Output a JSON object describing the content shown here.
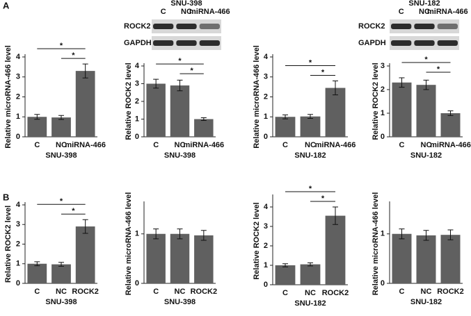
{
  "panel_labels": [
    "A",
    "B"
  ],
  "chart_data": [
    {
      "type": "bar",
      "ylabel": "Relative microRNA-466 level",
      "xlabel": "SNU-398",
      "categories": [
        "C",
        "NC",
        "miRNA-466"
      ],
      "values": [
        1.0,
        0.97,
        3.3
      ],
      "errors": [
        0.12,
        0.1,
        0.35
      ],
      "color": "#606060",
      "ylim": [
        0,
        4
      ],
      "yticks": [
        0,
        1,
        2,
        3,
        4
      ],
      "significance": [
        {
          "label": "*",
          "between": [
            0,
            2
          ]
        },
        {
          "label": "*",
          "between": [
            1,
            2
          ]
        }
      ]
    },
    {
      "type": "bar",
      "ylabel": "Relative ROCK2 level",
      "xlabel": "SNU-398",
      "categories": [
        "C",
        "NC",
        "miRNA-466"
      ],
      "values": [
        3.0,
        2.9,
        1.0
      ],
      "errors": [
        0.25,
        0.3,
        0.08
      ],
      "color": "#606060",
      "ylim": [
        0,
        4
      ],
      "yticks": [
        0,
        1,
        2,
        3,
        4
      ],
      "significance": [
        {
          "label": "*",
          "between": [
            0,
            2
          ]
        },
        {
          "label": "*",
          "between": [
            1,
            2
          ]
        }
      ],
      "blot": {
        "title": "SNU-398",
        "lanes": [
          "C",
          "NC",
          "miRNA-466"
        ],
        "rows": [
          "ROCK2",
          "GAPDH"
        ]
      }
    },
    {
      "type": "bar",
      "ylabel": "Relative microRNA-466 level",
      "xlabel": "SNU-182",
      "categories": [
        "C",
        "NC",
        "miRNA-466"
      ],
      "values": [
        1.0,
        1.02,
        2.45
      ],
      "errors": [
        0.1,
        0.1,
        0.35
      ],
      "color": "#606060",
      "ylim": [
        0,
        4
      ],
      "yticks": [
        0,
        1,
        2,
        3,
        4
      ],
      "significance": [
        {
          "label": "*",
          "between": [
            0,
            2
          ]
        },
        {
          "label": "*",
          "between": [
            1,
            2
          ]
        }
      ]
    },
    {
      "type": "bar",
      "ylabel": "Relative ROCK2 level",
      "xlabel": "SNU-182",
      "categories": [
        "C",
        "NC",
        "miRNA-466"
      ],
      "values": [
        2.3,
        2.2,
        1.0
      ],
      "errors": [
        0.2,
        0.2,
        0.1
      ],
      "color": "#606060",
      "ylim": [
        0,
        3
      ],
      "yticks": [
        0,
        1,
        2,
        3
      ],
      "significance": [
        {
          "label": "*",
          "between": [
            0,
            2
          ]
        },
        {
          "label": "*",
          "between": [
            1,
            2
          ]
        }
      ],
      "blot": {
        "title": "SNU-182",
        "lanes": [
          "C",
          "NC",
          "miRNA-466"
        ],
        "rows": [
          "ROCK2",
          "GAPDH"
        ]
      }
    },
    {
      "type": "bar",
      "ylabel": "Relative ROCK2 level",
      "xlabel": "SNU-398",
      "categories": [
        "C",
        "NC",
        "ROCK2"
      ],
      "values": [
        1.0,
        0.97,
        2.9
      ],
      "errors": [
        0.1,
        0.1,
        0.35
      ],
      "color": "#606060",
      "ylim": [
        0,
        4
      ],
      "yticks": [
        0,
        1,
        2,
        3,
        4
      ],
      "significance": [
        {
          "label": "*",
          "between": [
            0,
            2
          ]
        },
        {
          "label": "*",
          "between": [
            1,
            2
          ]
        }
      ]
    },
    {
      "type": "bar",
      "ylabel": "Relative microRNA-466 level",
      "xlabel": "SNU-398",
      "categories": [
        "C",
        "NC",
        "ROCK2"
      ],
      "values": [
        1.0,
        1.0,
        0.97
      ],
      "errors": [
        0.1,
        0.1,
        0.1
      ],
      "color": "#606060",
      "ylim": [
        0,
        1.6
      ],
      "yticks": [
        0,
        1
      ]
    },
    {
      "type": "bar",
      "ylabel": "Relative ROCK2 level",
      "xlabel": "SNU-182",
      "categories": [
        "C",
        "NC",
        "ROCK2"
      ],
      "values": [
        1.0,
        1.05,
        3.55
      ],
      "errors": [
        0.08,
        0.08,
        0.45
      ],
      "color": "#606060",
      "ylim": [
        0,
        4.5
      ],
      "yticks": [
        0,
        1,
        2,
        3,
        4
      ],
      "significance": [
        {
          "label": "*",
          "between": [
            0,
            2
          ]
        },
        {
          "label": "*",
          "between": [
            1,
            2
          ]
        }
      ]
    },
    {
      "type": "bar",
      "ylabel": "Relative microRNA-466 level",
      "xlabel": "SNU-182",
      "categories": [
        "C",
        "NC",
        "ROCK2"
      ],
      "values": [
        1.0,
        0.97,
        0.98
      ],
      "errors": [
        0.1,
        0.1,
        0.1
      ],
      "color": "#606060",
      "ylim": [
        0,
        1.6
      ],
      "yticks": [
        0,
        1
      ]
    }
  ]
}
